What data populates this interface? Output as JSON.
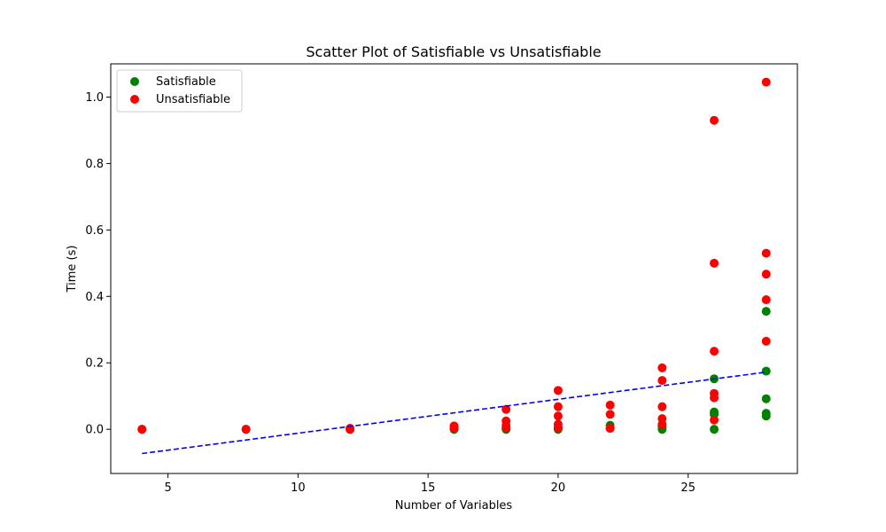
{
  "chart_data": {
    "type": "scatter",
    "title": "Scatter Plot of Satisfiable vs Unsatisfiable",
    "xlabel": "Number of Variables",
    "ylabel": "Time (s)",
    "xlim": [
      2.8,
      29.2
    ],
    "ylim": [
      -0.133,
      1.1
    ],
    "xticks": [
      5,
      10,
      15,
      20,
      25
    ],
    "yticks": [
      0.0,
      0.2,
      0.4,
      0.6,
      0.8,
      1.0
    ],
    "xtick_labels": [
      "5",
      "10",
      "15",
      "20",
      "25"
    ],
    "ytick_labels": [
      "0.0",
      "0.2",
      "0.4",
      "0.6",
      "0.8",
      "1.0"
    ],
    "grid": false,
    "legend_position": "top-left",
    "series": [
      {
        "name": "Satisfiable",
        "color": "#008000",
        "points": [
          [
            4,
            0.0
          ],
          [
            8,
            0.0
          ],
          [
            12,
            0.0
          ],
          [
            16,
            0.0
          ],
          [
            16,
            0.002
          ],
          [
            18,
            0.0
          ],
          [
            18,
            0.003
          ],
          [
            20,
            0.0
          ],
          [
            20,
            0.004
          ],
          [
            22,
            0.003
          ],
          [
            22,
            0.012
          ],
          [
            24,
            0.0
          ],
          [
            24,
            0.006
          ],
          [
            24,
            0.012
          ],
          [
            26,
            0.0
          ],
          [
            26,
            0.045
          ],
          [
            26,
            0.052
          ],
          [
            26,
            0.152
          ],
          [
            28,
            0.04
          ],
          [
            28,
            0.048
          ],
          [
            28,
            0.092
          ],
          [
            28,
            0.175
          ],
          [
            28,
            0.355
          ]
        ]
      },
      {
        "name": "Unsatisfiable",
        "color": "#ff0000",
        "points": [
          [
            4,
            0.0
          ],
          [
            8,
            0.0
          ],
          [
            12,
            0.0
          ],
          [
            12,
            0.003
          ],
          [
            16,
            0.003
          ],
          [
            16,
            0.01
          ],
          [
            18,
            0.005
          ],
          [
            18,
            0.012
          ],
          [
            18,
            0.025
          ],
          [
            18,
            0.06
          ],
          [
            20,
            0.005
          ],
          [
            20,
            0.015
          ],
          [
            20,
            0.04
          ],
          [
            20,
            0.068
          ],
          [
            20,
            0.117
          ],
          [
            22,
            0.003
          ],
          [
            22,
            0.045
          ],
          [
            22,
            0.073
          ],
          [
            24,
            0.015
          ],
          [
            24,
            0.032
          ],
          [
            24,
            0.068
          ],
          [
            24,
            0.147
          ],
          [
            24,
            0.185
          ],
          [
            26,
            0.028
          ],
          [
            26,
            0.095
          ],
          [
            26,
            0.108
          ],
          [
            26,
            0.235
          ],
          [
            26,
            0.5
          ],
          [
            26,
            0.93
          ],
          [
            28,
            0.265
          ],
          [
            28,
            0.39
          ],
          [
            28,
            0.467
          ],
          [
            28,
            0.53
          ],
          [
            28,
            1.045
          ]
        ]
      }
    ],
    "trendline": {
      "style": "dashed",
      "color": "#0000ff",
      "points": [
        [
          4,
          -0.073
        ],
        [
          28,
          0.172
        ]
      ]
    }
  }
}
